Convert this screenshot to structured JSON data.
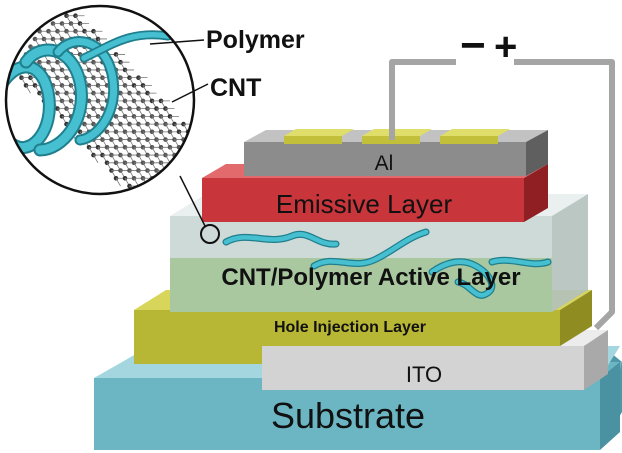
{
  "labels": {
    "polymer": "Polymer",
    "cnt": "CNT",
    "minus": "−",
    "plus": "+",
    "al": "Al",
    "emissive": "Emissive Layer",
    "active": "CNT/Polymer Active Layer",
    "hole_injection": "Hole Injection Layer",
    "ito": "ITO",
    "substrate": "Substrate"
  },
  "colors": {
    "substrate": "#6cb6c4",
    "ito": "#d3d3d3",
    "hole_injection": "#b8b635",
    "active_layer": "#a9c9a4",
    "emissive": "#c8353a",
    "al": "#8c8c8c",
    "contacts": "#c2c03a",
    "polymer": "#46bfd0",
    "wire": "#a5a5a5"
  }
}
